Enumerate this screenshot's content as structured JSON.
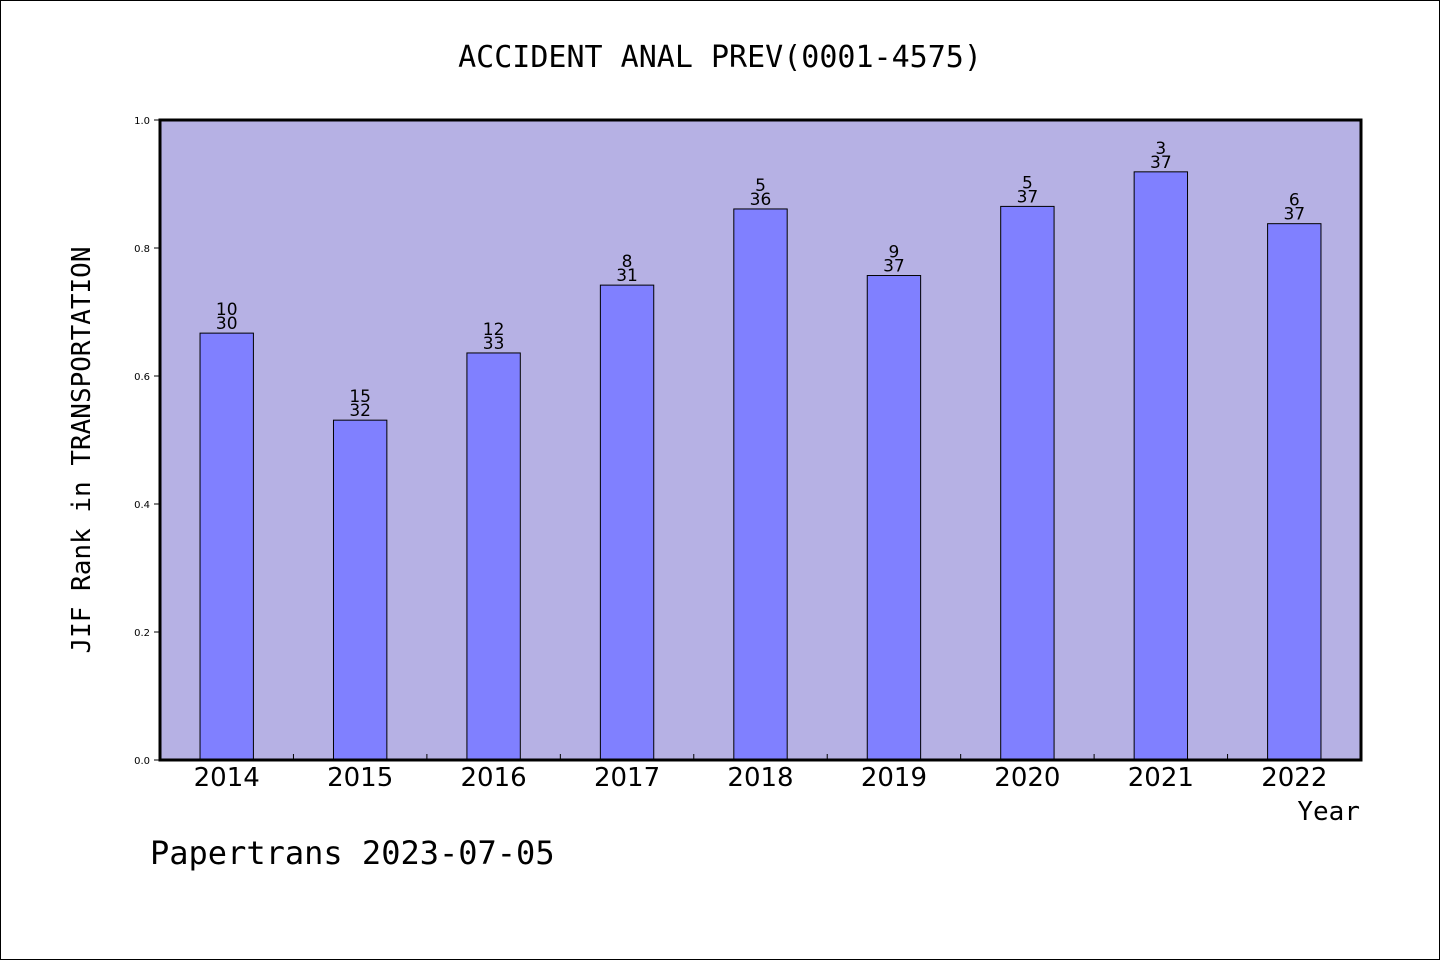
{
  "chart_data": {
    "type": "bar",
    "title": "ACCIDENT ANAL PREV(0001-4575)",
    "xlabel": "Year",
    "ylabel": "JIF Rank in TRANSPORTATION",
    "ylim": [
      0,
      1.0
    ],
    "yticks": [
      0.0,
      0.2,
      0.4,
      0.6,
      0.8,
      1.0
    ],
    "grid": false,
    "categories": [
      "2014",
      "2015",
      "2016",
      "2017",
      "2018",
      "2019",
      "2020",
      "2021",
      "2022"
    ],
    "values": [
      0.667,
      0.531,
      0.636,
      0.742,
      0.861,
      0.757,
      0.865,
      0.919,
      0.838
    ],
    "rank_labels": [
      [
        "10",
        "30"
      ],
      [
        "15",
        "32"
      ],
      [
        "12",
        "33"
      ],
      [
        "8",
        "31"
      ],
      [
        "5",
        "36"
      ],
      [
        "9",
        "37"
      ],
      [
        "5",
        "37"
      ],
      [
        "3",
        "37"
      ],
      [
        "6",
        "37"
      ]
    ],
    "colors": {
      "plot_background": "#b6b1e4",
      "bar_fill": "#8080ff",
      "bar_stroke": "#000000"
    }
  },
  "footer": "Papertrans 2023-07-05"
}
